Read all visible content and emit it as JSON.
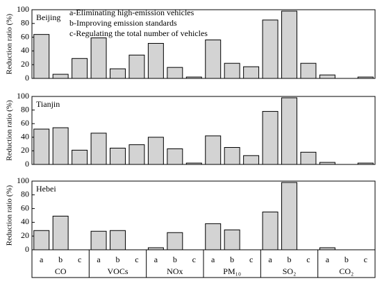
{
  "chart_data": [
    {
      "type": "bar",
      "panel_label": "Beijing",
      "y_label": "Reduction ratio (%)",
      "legend": [
        "a-Eliminating high-emission vehicles",
        "b-Improving emission standards",
        "c-Regulating the total number of vehicles"
      ],
      "values": [
        64,
        6,
        29,
        59,
        14,
        34,
        51,
        16,
        2,
        56,
        22,
        17,
        85,
        98,
        22,
        5,
        0,
        2
      ],
      "color": "#d3d3d3",
      "ylim": [
        0,
        100
      ],
      "yticks": [
        0,
        20,
        40,
        60,
        80,
        100
      ]
    },
    {
      "type": "bar",
      "panel_label": "Tianjin",
      "y_label": "Reduction ratio (%)",
      "values": [
        52,
        54,
        21,
        46,
        24,
        29,
        40,
        23,
        2,
        42,
        25,
        13,
        78,
        98,
        18,
        3,
        0,
        2
      ],
      "color": "#d3d3d3",
      "ylim": [
        0,
        100
      ],
      "yticks": [
        0,
        20,
        40,
        60,
        80,
        100
      ]
    },
    {
      "type": "bar",
      "panel_label": "Hebei",
      "y_label": "Reduction ratio (%)",
      "values": [
        28,
        49,
        0,
        27,
        28,
        0,
        3,
        25,
        0,
        38,
        29,
        0,
        55,
        98,
        0,
        3,
        0,
        0
      ],
      "color": "#d3d3d3",
      "ylim": [
        0,
        100
      ],
      "yticks": [
        0,
        20,
        40,
        60,
        80,
        100
      ],
      "categories": [
        "a",
        "b",
        "c",
        "a",
        "b",
        "c",
        "a",
        "b",
        "c",
        "a",
        "b",
        "c",
        "a",
        "b",
        "c",
        "a",
        "b",
        "c"
      ],
      "groups": [
        "CO",
        "VOCs",
        "NOx",
        "PM₁₀",
        "SO₂",
        "CO₂"
      ]
    }
  ]
}
